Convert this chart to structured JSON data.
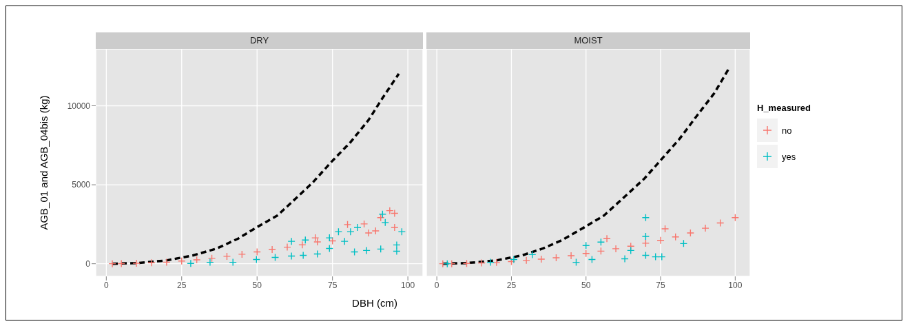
{
  "chart_data": [
    {
      "type": "scatter",
      "title": "DRY",
      "xlabel": "DBH (cm)",
      "ylabel": "AGB_01 and AGB_04bis (kg)",
      "xlim": [
        -3.5,
        105
      ],
      "ylim": [
        -800,
        13600
      ],
      "xticks": [
        0,
        25,
        50,
        75,
        100
      ],
      "yticks": [
        0,
        5000,
        10000
      ],
      "grid": true,
      "marker": "cross",
      "line_style": "dashed",
      "series": [
        {
          "type": "line",
          "marker": "none",
          "color": "#000000",
          "x": [
            2,
            10,
            20,
            28.8,
            36.7,
            43.7,
            49.8,
            56.7,
            63,
            68.4,
            74.7,
            81,
            87,
            91.6,
            97
          ],
          "values": [
            0,
            40,
            210,
            530,
            970,
            1590,
            2300,
            3050,
            4160,
            5130,
            6460,
            7700,
            9110,
            10490,
            12030
          ]
        },
        {
          "color": "#f8766d",
          "x": [
            2,
            5,
            10,
            15,
            20,
            25,
            30,
            35,
            40,
            45,
            50,
            55,
            60,
            65,
            69.3,
            70,
            75,
            80,
            85.5,
            87,
            89.3,
            91,
            94,
            95.6,
            95.6
          ],
          "values": [
            0,
            10,
            30,
            60,
            100,
            170,
            250,
            350,
            470,
            600,
            750,
            900,
            1050,
            1200,
            1640,
            1380,
            1450,
            2480,
            2520,
            1950,
            2080,
            2920,
            3360,
            3190,
            2300
          ]
        },
        {
          "color": "#00bfc4",
          "x": [
            28,
            34.4,
            42,
            49.8,
            56,
            61.4,
            61.4,
            65.3,
            66,
            70,
            74,
            74,
            77,
            79,
            81,
            82.3,
            83.3,
            86.3,
            91,
            91.6,
            92.5,
            96.3,
            96.3,
            98
          ],
          "values": [
            20,
            90,
            90,
            270,
            400,
            490,
            1420,
            530,
            1500,
            620,
            970,
            1640,
            2030,
            1420,
            2030,
            750,
            2300,
            840,
            930,
            3140,
            2610,
            1190,
            790,
            2030
          ]
        }
      ]
    },
    {
      "type": "scatter",
      "title": "MOIST",
      "xlim": [
        -3.5,
        105
      ],
      "ylim": [
        -800,
        13600
      ],
      "xticks": [
        0,
        25,
        50,
        75,
        100
      ],
      "yticks": [
        0,
        5000,
        10000
      ],
      "tick_labels": "x",
      "grid": true,
      "marker": "cross",
      "line_style": "dashed",
      "legend": "right",
      "legend_title": "H_measured",
      "series": [
        {
          "type": "line",
          "marker": "none",
          "color": "#000000",
          "x": [
            2,
            10,
            20,
            28.6,
            35.6,
            42,
            49,
            56,
            63,
            69.6,
            75.6,
            81.4,
            87.2,
            93,
            98.1
          ],
          "values": [
            0,
            40,
            210,
            530,
            970,
            1500,
            2260,
            3050,
            4250,
            5400,
            6680,
            7920,
            9380,
            10800,
            12430
          ]
        },
        {
          "name": "no",
          "color": "#f8766d",
          "x": [
            2,
            5,
            10,
            15,
            20,
            25,
            30,
            35,
            40,
            45,
            50,
            55,
            57,
            60,
            65,
            70,
            75,
            76.5,
            80,
            85,
            90,
            95,
            100
          ],
          "values": [
            0,
            0,
            20,
            50,
            80,
            140,
            210,
            290,
            380,
            510,
            650,
            800,
            1590,
            950,
            1110,
            1300,
            1480,
            2210,
            1700,
            1950,
            2250,
            2580,
            2920
          ]
        },
        {
          "name": "yes",
          "color": "#00bfc4",
          "x": [
            3.5,
            18,
            25.8,
            32,
            46.7,
            50,
            52,
            55,
            63,
            65,
            70,
            70,
            70,
            73.3,
            75.4,
            82.7
          ],
          "values": [
            0,
            90,
            270,
            580,
            90,
            1150,
            270,
            1370,
            310,
            840,
            2920,
            1730,
            530,
            440,
            440,
            1280
          ]
        }
      ]
    }
  ]
}
